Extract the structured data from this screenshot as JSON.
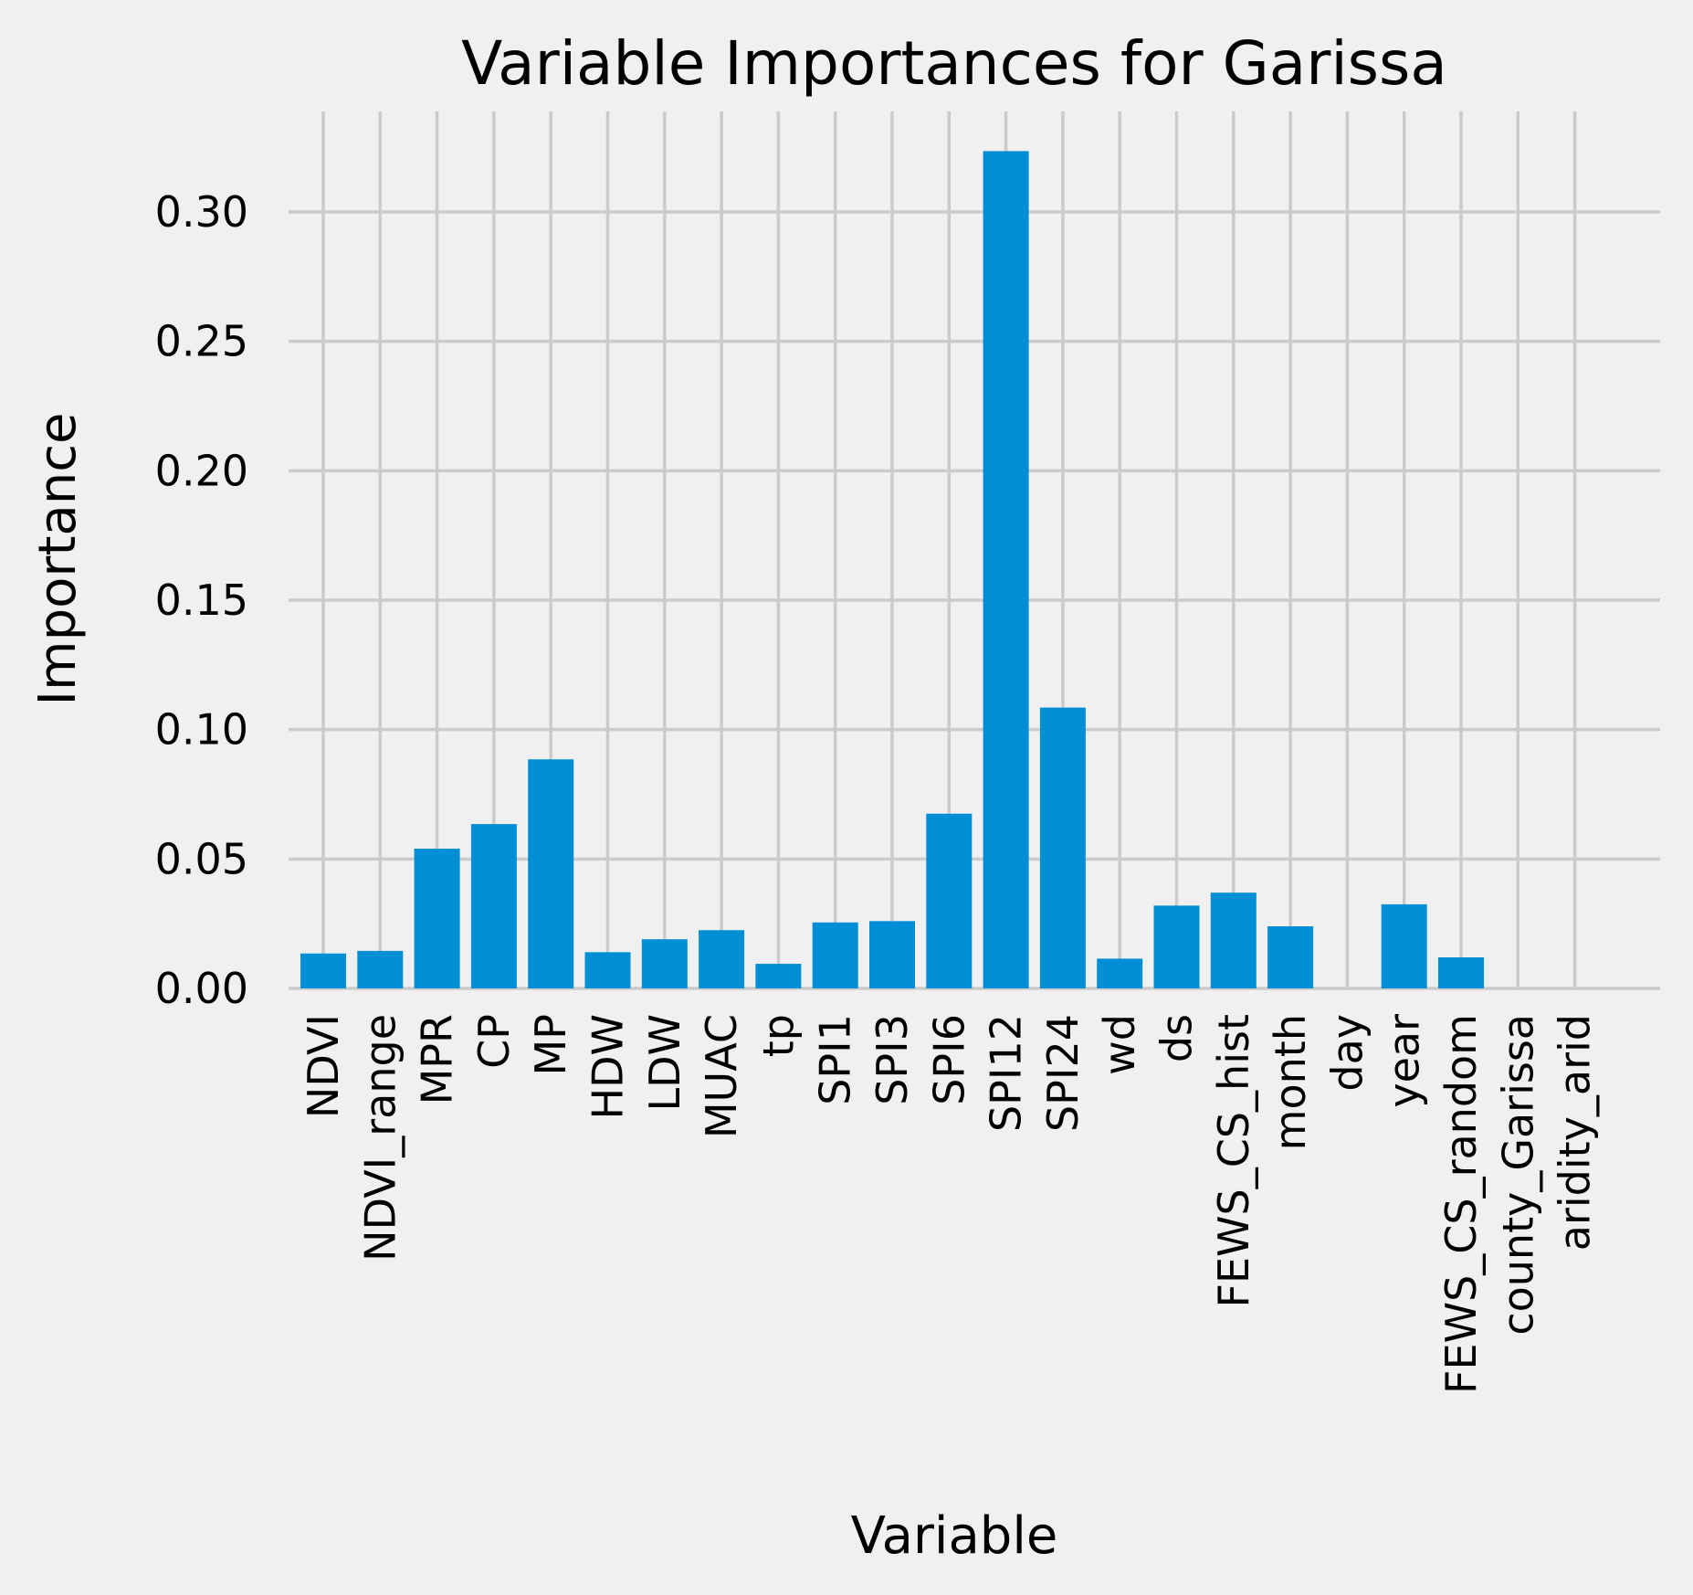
{
  "chart_data": {
    "type": "bar",
    "title": "Variable Importances for Garissa",
    "xlabel": "Variable",
    "ylabel": "Importance",
    "categories": [
      "NDVI",
      "NDVI_range",
      "MPR",
      "CP",
      "MP",
      "HDW",
      "LDW",
      "MUAC",
      "tp",
      "SPI1",
      "SPI3",
      "SPI6",
      "SPI12",
      "SPI24",
      "wd",
      "ds",
      "FEWS_CS_hist",
      "month",
      "day",
      "year",
      "FEWS_CS_random",
      "county_Garissa",
      "aridity_arid"
    ],
    "values": [
      0.0135,
      0.0145,
      0.054,
      0.0635,
      0.0885,
      0.014,
      0.019,
      0.0225,
      0.0095,
      0.0255,
      0.026,
      0.0675,
      0.3235,
      0.1085,
      0.0115,
      0.032,
      0.037,
      0.024,
      0.0,
      0.0325,
      0.012,
      0.0,
      0.0
    ],
    "ylim": [
      0,
      0.335
    ],
    "yticks": [
      "0.00",
      "0.05",
      "0.10",
      "0.15",
      "0.20",
      "0.25",
      "0.30"
    ],
    "grid": true,
    "colors": {
      "bar": "#008fd5",
      "background": "#f0f0f0",
      "grid": "#cbcbcb"
    }
  }
}
